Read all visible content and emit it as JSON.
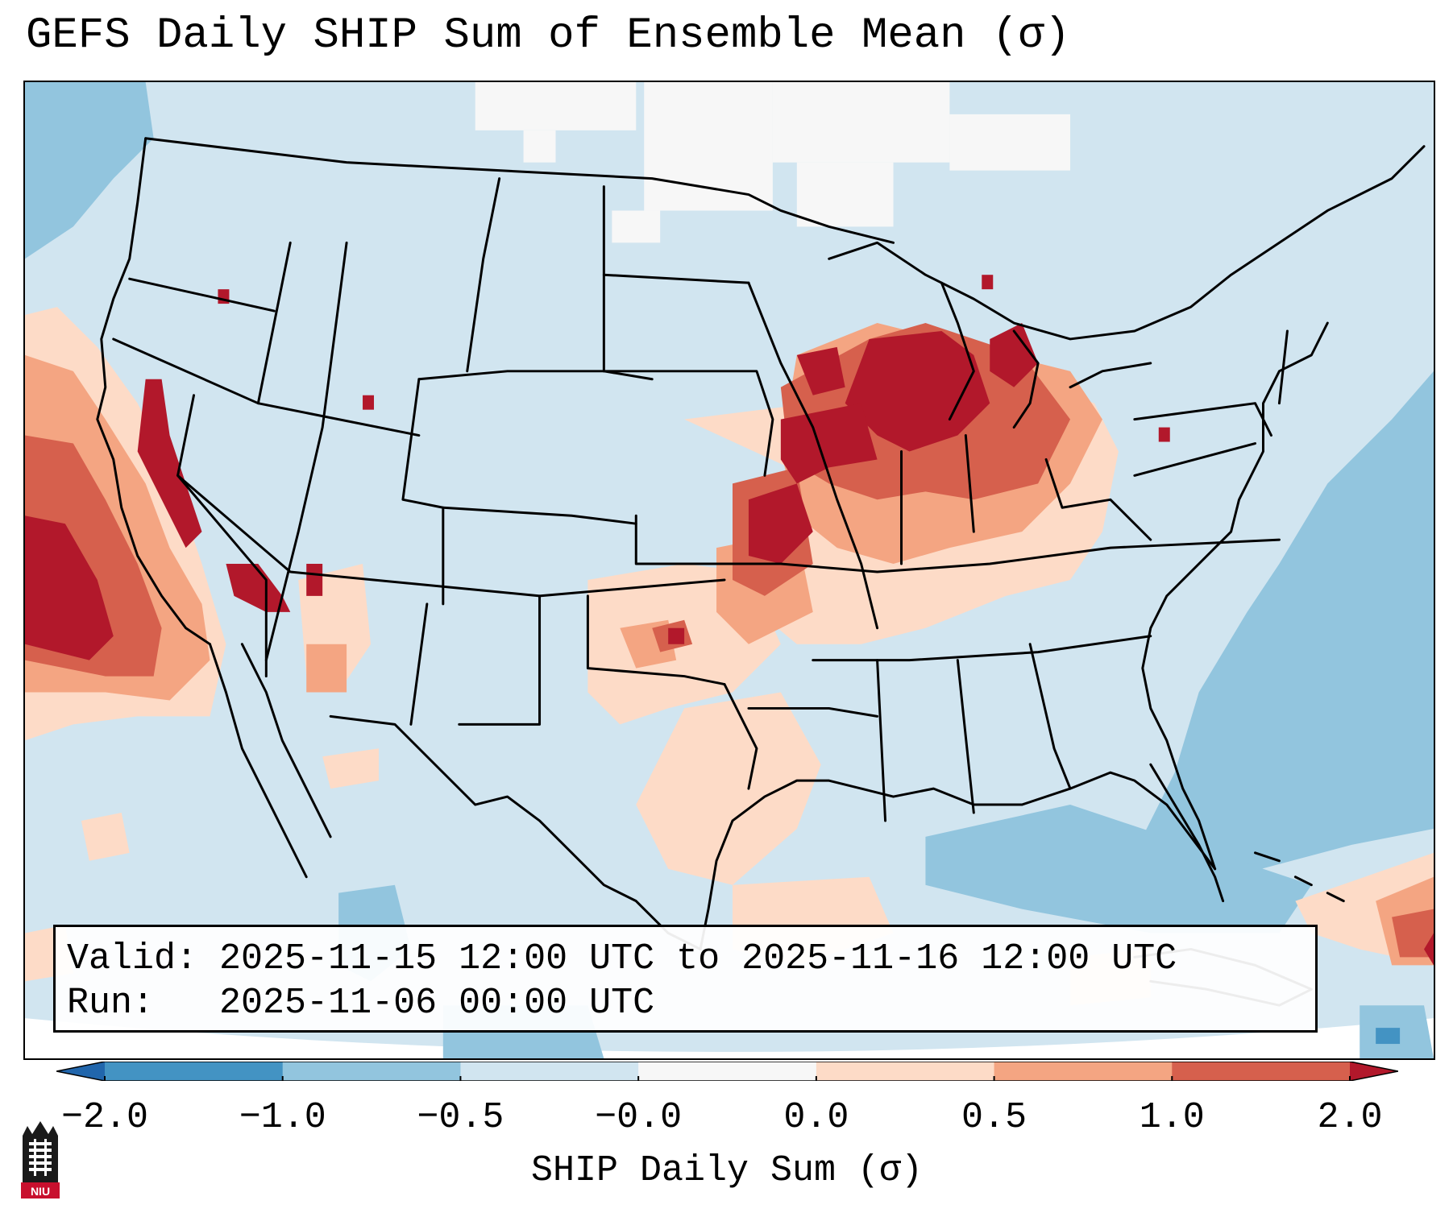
{
  "title": "GEFS Daily SHIP Sum of Ensemble Mean (σ)",
  "info": {
    "valid_label": "Valid:",
    "valid_value": "2025-11-15 12:00 UTC to 2025-11-16 12:00 UTC",
    "run_label": "Run:",
    "run_value": "2025-11-06 00:00 UTC"
  },
  "colorbar": {
    "label": "SHIP Daily Sum (σ)",
    "ticks": [
      "−2.0",
      "−1.0",
      "−0.5",
      "−0.0",
      "0.0",
      "0.5",
      "1.0",
      "2.0"
    ],
    "bins": [
      {
        "from": -2.0,
        "to": -1.0,
        "color": "#4393c3"
      },
      {
        "from": -1.0,
        "to": -0.5,
        "color": "#92c5de"
      },
      {
        "from": -0.5,
        "to": 0.0,
        "color": "#d1e5f0"
      },
      {
        "from": 0.0,
        "to": 0.0,
        "color": "#f7f7f7"
      },
      {
        "from": 0.0,
        "to": 0.5,
        "color": "#fddbc7"
      },
      {
        "from": 0.5,
        "to": 1.0,
        "color": "#f4a582"
      },
      {
        "from": 1.0,
        "to": 2.0,
        "color": "#d6604d"
      }
    ],
    "under_color": "#2166ac",
    "over_color": "#b2182b"
  },
  "logo": {
    "icon": "niu-logo-icon",
    "text": "NIU"
  }
}
